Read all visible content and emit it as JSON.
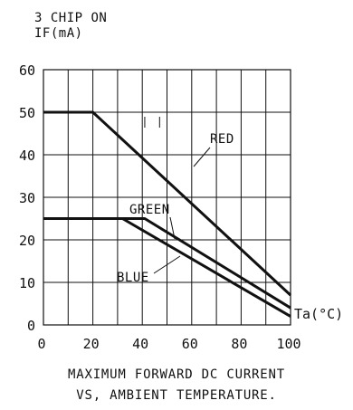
{
  "heading": {
    "line1": "3 CHIP ON",
    "line2": "IF(mA)"
  },
  "caption": {
    "line1": "MAXIMUM FORWARD DC CURRENT",
    "line2": "VS, AMBIENT TEMPERATURE."
  },
  "chart_data": {
    "type": "line",
    "title": "",
    "xlabel": "Ta(°C)",
    "ylabel": "IF(mA)",
    "xlim": [
      0,
      100
    ],
    "ylim": [
      0,
      60
    ],
    "xticks": [
      0,
      20,
      40,
      60,
      80,
      100
    ],
    "yticks": [
      0,
      10,
      20,
      30,
      40,
      50,
      60
    ],
    "x_tick_labels": [
      "0",
      "20",
      "40",
      "60",
      "80",
      "100"
    ],
    "y_tick_labels": [
      "0",
      "10",
      "20",
      "30",
      "40",
      "50",
      "60"
    ],
    "grid": true,
    "legend": "none",
    "series": [
      {
        "name": "RED",
        "color": "#111111",
        "x": [
          0,
          20,
          100
        ],
        "y": [
          50,
          50,
          7
        ]
      },
      {
        "name": "GREEN",
        "color": "#111111",
        "x": [
          0,
          41,
          100
        ],
        "y": [
          25,
          25,
          4
        ]
      },
      {
        "name": "BLUE",
        "color": "#111111",
        "x": [
          0,
          32,
          100
        ],
        "y": [
          25,
          25,
          2
        ]
      }
    ]
  }
}
